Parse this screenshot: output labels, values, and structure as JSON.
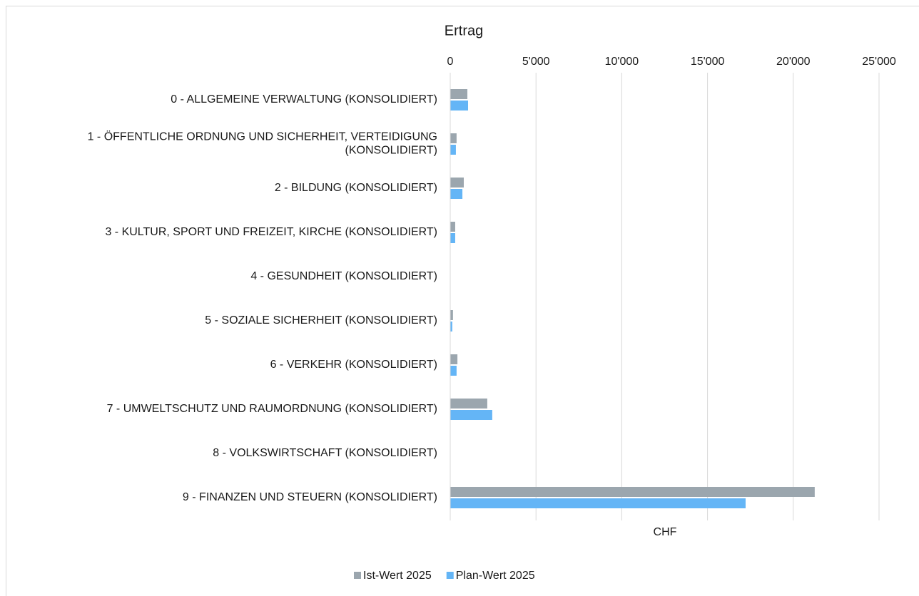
{
  "chart_data": {
    "type": "hbar",
    "title": "Ertrag",
    "xlabel": "CHF",
    "categories": [
      "0 - ALLGEMEINE VERWALTUNG (KONSOLIDIERT)",
      "1 - ÖFFENTLICHE ORDNUNG UND SICHERHEIT, VERTEIDIGUNG (KONSOLIDIERT)",
      "2 - BILDUNG (KONSOLIDIERT)",
      "3 - KULTUR, SPORT UND FREIZEIT, KIRCHE (KONSOLIDIERT)",
      "4 - GESUNDHEIT (KONSOLIDIERT)",
      "5 - SOZIALE SICHERHEIT (KONSOLIDIERT)",
      "6 - VERKEHR (KONSOLIDIERT)",
      "7 - UMWELTSCHUTZ UND RAUMORDNUNG (KONSOLIDIERT)",
      "8 - VOLKSWIRTSCHAFT (KONSOLIDIERT)",
      "9 - FINANZEN UND STEUERN (KONSOLIDIERT)"
    ],
    "series": [
      {
        "name": "Ist-Wert 2025",
        "color": "#9ba6ae",
        "values": [
          1000,
          370,
          790,
          290,
          0,
          160,
          420,
          2160,
          20,
          21250
        ]
      },
      {
        "name": "Plan-Wert 2025",
        "color": "#64b5f6",
        "values": [
          1040,
          330,
          710,
          290,
          0,
          120,
          370,
          2450,
          20,
          17220
        ]
      }
    ],
    "xlim": [
      0,
      25000
    ],
    "xticks": [
      0,
      {
        "value": 5000,
        "label": "5'000"
      },
      {
        "value": 10000,
        "label": "10'000"
      },
      {
        "value": 15000,
        "label": "15'000"
      },
      {
        "value": 20000,
        "label": "20'000"
      },
      {
        "value": 25000,
        "label": "25'000"
      }
    ],
    "grid": true,
    "legend": "bottom"
  }
}
